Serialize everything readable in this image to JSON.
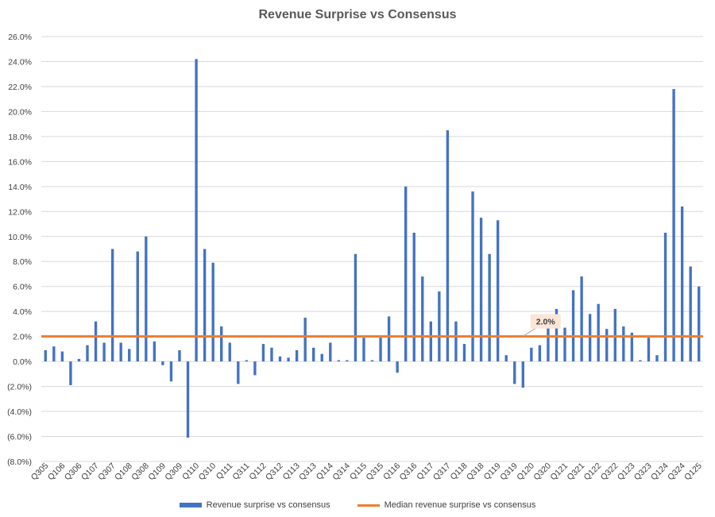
{
  "chart_data": {
    "type": "bar",
    "title": "Revenue Surprise vs Consensus",
    "xlabel": "",
    "ylabel": "",
    "ylim": [
      -8.0,
      26.0
    ],
    "yticks": [
      -8,
      -6,
      -4,
      -2,
      0,
      2,
      4,
      6,
      8,
      10,
      12,
      14,
      16,
      18,
      20,
      22,
      24,
      26
    ],
    "ytick_labels": [
      "(8.0%)",
      "(6.0%)",
      "(4.0%)",
      "(2.0%)",
      "0.0%",
      "2.0%",
      "4.0%",
      "6.0%",
      "8.0%",
      "10.0%",
      "12.0%",
      "14.0%",
      "16.0%",
      "18.0%",
      "20.0%",
      "22.0%",
      "24.0%",
      "26.0%"
    ],
    "grid": true,
    "legend_position": "bottom",
    "categories": [
      "Q305",
      "Q405",
      "Q106",
      "Q206",
      "Q306",
      "Q406",
      "Q107",
      "Q207",
      "Q307",
      "Q407",
      "Q108",
      "Q208",
      "Q308",
      "Q408",
      "Q109",
      "Q209",
      "Q309",
      "Q409",
      "Q110",
      "Q210",
      "Q310",
      "Q410",
      "Q111",
      "Q211",
      "Q311",
      "Q411",
      "Q112",
      "Q212",
      "Q312",
      "Q412",
      "Q113",
      "Q213",
      "Q313",
      "Q413",
      "Q114",
      "Q214",
      "Q314",
      "Q414",
      "Q115",
      "Q215",
      "Q315",
      "Q415",
      "Q116",
      "Q216",
      "Q316",
      "Q416",
      "Q117",
      "Q217",
      "Q317",
      "Q417",
      "Q118",
      "Q218",
      "Q318",
      "Q418",
      "Q119",
      "Q219",
      "Q319",
      "Q419",
      "Q120",
      "Q220",
      "Q320",
      "Q420",
      "Q121",
      "Q221",
      "Q321",
      "Q421",
      "Q122",
      "Q222",
      "Q322",
      "Q422",
      "Q123",
      "Q223",
      "Q323",
      "Q423",
      "Q124",
      "Q224",
      "Q324",
      "Q424",
      "Q125"
    ],
    "visible_tick_labels": [
      "Q305",
      "Q106",
      "Q306",
      "Q107",
      "Q307",
      "Q108",
      "Q308",
      "Q109",
      "Q309",
      "Q110",
      "Q310",
      "Q111",
      "Q311",
      "Q112",
      "Q312",
      "Q113",
      "Q313",
      "Q114",
      "Q314",
      "Q115",
      "Q315",
      "Q116",
      "Q316",
      "Q117",
      "Q317",
      "Q118",
      "Q318",
      "Q119",
      "Q319",
      "Q120",
      "Q320",
      "Q121",
      "Q321",
      "Q122",
      "Q322",
      "Q123",
      "Q323",
      "Q124",
      "Q324",
      "Q125"
    ],
    "series": [
      {
        "name": "Revenue surprise vs consensus",
        "kind": "bar",
        "color": "#4472C4",
        "values": [
          0.9,
          1.2,
          0.8,
          -1.9,
          0.2,
          1.3,
          3.2,
          1.5,
          9.0,
          1.5,
          1.0,
          8.8,
          10.0,
          1.6,
          -0.3,
          -1.6,
          0.9,
          -6.1,
          24.2,
          9.0,
          7.9,
          2.8,
          1.5,
          -1.8,
          0.1,
          -1.1,
          1.4,
          1.1,
          0.4,
          0.3,
          0.9,
          3.5,
          1.1,
          0.6,
          1.5,
          0.1,
          0.1,
          8.6,
          1.9,
          0.1,
          1.9,
          3.6,
          -0.9,
          14.0,
          10.3,
          6.8,
          3.2,
          5.6,
          18.5,
          3.2,
          1.4,
          13.6,
          11.5,
          8.6,
          11.3,
          0.5,
          -1.8,
          -2.1,
          1.1,
          1.3,
          3.3,
          4.2,
          2.7,
          5.7,
          6.8,
          3.8,
          4.6,
          2.6,
          4.2,
          2.8,
          2.3,
          0.1,
          1.9,
          0.5,
          10.3,
          21.8,
          12.4,
          7.6,
          6.0
        ]
      },
      {
        "name": "Median revenue surprise vs consensus",
        "kind": "line",
        "color": "#ED7D31",
        "value": 2.0
      }
    ],
    "annotations": [
      {
        "text": "2.0%",
        "category": "Q319",
        "value": 2.0
      }
    ]
  }
}
